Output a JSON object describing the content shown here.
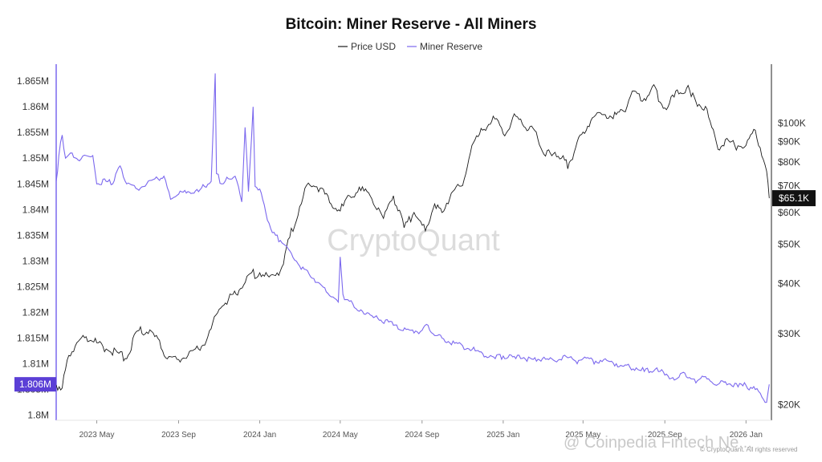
{
  "chart_data": {
    "type": "line",
    "title": "Bitcoin: Miner Reserve - All Miners",
    "legend": [
      "Price USD",
      "Miner Reserve"
    ],
    "legend_position": "top-center",
    "grid": false,
    "x_ticks": [
      "2023 May",
      "2023 Sep",
      "2024 Jan",
      "2024 May",
      "2024 Sep",
      "2025 Jan",
      "2025 May",
      "2025 Sep",
      "2026 Jan"
    ],
    "y_left": {
      "scale": "linear",
      "range": [
        1.799,
        1.8683
      ],
      "ticks": [
        1.8,
        1.805,
        1.81,
        1.815,
        1.82,
        1.825,
        1.83,
        1.835,
        1.84,
        1.845,
        1.85,
        1.855,
        1.86,
        1.865
      ],
      "tick_labels": [
        "1.8M",
        "1.805M",
        "1.81M",
        "1.815M",
        "1.82M",
        "1.825M",
        "1.83M",
        "1.835M",
        "1.84M",
        "1.845M",
        "1.85M",
        "1.855M",
        "1.86M",
        "1.865M"
      ],
      "current_value_label": "1.806M"
    },
    "y_right": {
      "scale": "log",
      "range": [
        18300,
        140000
      ],
      "ticks": [
        20000,
        30000,
        40000,
        50000,
        60000,
        70000,
        80000,
        90000,
        100000
      ],
      "tick_labels": [
        "$20K",
        "$30K",
        "$40K",
        "$50K",
        "$60K",
        "$70K",
        "$80K",
        "$90K",
        "$100K"
      ],
      "current_value_label": "$65.1K"
    },
    "series": [
      {
        "name": "Price USD",
        "axis": "right",
        "color": "#1a1a1a",
        "x": [
          "2023-03-01",
          "2023-03-10",
          "2023-03-20",
          "2023-04-01",
          "2023-04-15",
          "2023-05-01",
          "2023-05-15",
          "2023-06-01",
          "2023-06-15",
          "2023-07-01",
          "2023-07-15",
          "2023-08-01",
          "2023-08-15",
          "2023-09-01",
          "2023-09-15",
          "2023-10-01",
          "2023-10-15",
          "2023-11-01",
          "2023-11-15",
          "2023-12-01",
          "2023-12-15",
          "2024-01-01",
          "2024-01-15",
          "2024-02-01",
          "2024-02-15",
          "2024-03-01",
          "2024-03-14",
          "2024-04-01",
          "2024-04-15",
          "2024-05-01",
          "2024-05-15",
          "2024-06-01",
          "2024-06-15",
          "2024-07-05",
          "2024-07-20",
          "2024-08-05",
          "2024-08-20",
          "2024-09-06",
          "2024-09-20",
          "2024-10-01",
          "2024-10-15",
          "2024-11-01",
          "2024-11-15",
          "2024-12-01",
          "2024-12-17",
          "2025-01-01",
          "2025-01-20",
          "2025-02-01",
          "2025-02-15",
          "2025-03-01",
          "2025-03-15",
          "2025-04-01",
          "2025-04-08",
          "2025-04-20",
          "2025-05-01",
          "2025-05-15",
          "2025-06-01",
          "2025-06-20",
          "2025-07-01",
          "2025-07-14",
          "2025-08-01",
          "2025-08-13",
          "2025-09-01",
          "2025-09-15",
          "2025-10-06",
          "2025-10-20",
          "2025-11-01",
          "2025-11-20",
          "2025-12-01",
          "2025-12-15",
          "2026-01-01",
          "2026-01-15",
          "2026-02-01",
          "2026-02-05"
        ],
        "values": [
          22400,
          22000,
          26500,
          28500,
          29500,
          28500,
          27500,
          27000,
          26000,
          30500,
          30300,
          29200,
          26000,
          25900,
          26500,
          27500,
          29500,
          34500,
          36500,
          38500,
          42000,
          42500,
          41500,
          43000,
          52000,
          62000,
          71000,
          69000,
          63500,
          60500,
          66000,
          68000,
          66000,
          58000,
          66000,
          55000,
          60000,
          54000,
          63000,
          60000,
          67000,
          70000,
          88000,
          96000,
          104000,
          94000,
          104000,
          98000,
          97000,
          85000,
          83000,
          83000,
          77000,
          87000,
          95000,
          103000,
          105000,
          105000,
          107000,
          120000,
          115000,
          123000,
          109000,
          116000,
          124000,
          110000,
          110000,
          86000,
          91000,
          88000,
          88000,
          96000,
          76000,
          65100
        ]
      },
      {
        "name": "Miner Reserve",
        "axis": "left",
        "color": "#7b68ee",
        "x": [
          "2023-03-01",
          "2023-03-05",
          "2023-03-10",
          "2023-03-15",
          "2023-03-25",
          "2023-04-05",
          "2023-04-15",
          "2023-04-25",
          "2023-05-01",
          "2023-05-15",
          "2023-05-25",
          "2023-06-05",
          "2023-06-15",
          "2023-07-01",
          "2023-07-15",
          "2023-08-01",
          "2023-08-10",
          "2023-08-20",
          "2023-09-01",
          "2023-09-15",
          "2023-10-01",
          "2023-10-10",
          "2023-10-20",
          "2023-10-26",
          "2023-10-28",
          "2023-11-05",
          "2023-11-15",
          "2023-11-25",
          "2023-12-05",
          "2023-12-10",
          "2023-12-15",
          "2023-12-22",
          "2023-12-25",
          "2024-01-01",
          "2024-01-10",
          "2024-01-20",
          "2024-02-01",
          "2024-02-15",
          "2024-03-01",
          "2024-03-15",
          "2024-04-01",
          "2024-04-10",
          "2024-04-20",
          "2024-04-28",
          "2024-05-01",
          "2024-05-05",
          "2024-05-10",
          "2024-06-01",
          "2024-06-20",
          "2024-07-01",
          "2024-07-20",
          "2024-08-01",
          "2024-08-20",
          "2024-09-01",
          "2024-09-10",
          "2024-09-20",
          "2024-10-01",
          "2024-10-20",
          "2024-11-01",
          "2024-11-20",
          "2024-12-01",
          "2024-12-20",
          "2025-01-01",
          "2025-01-20",
          "2025-02-01",
          "2025-02-20",
          "2025-03-01",
          "2025-03-20",
          "2025-04-01",
          "2025-04-20",
          "2025-05-01",
          "2025-05-20",
          "2025-06-01",
          "2025-06-20",
          "2025-07-01",
          "2025-07-20",
          "2025-08-01",
          "2025-08-20",
          "2025-09-01",
          "2025-09-20",
          "2025-10-01",
          "2025-10-20",
          "2025-11-01",
          "2025-11-20",
          "2025-12-01",
          "2025-12-20",
          "2026-01-01",
          "2026-01-15",
          "2026-01-25",
          "2026-02-01",
          "2026-02-05"
        ],
        "values": [
          1.8455,
          1.8505,
          1.8545,
          1.85,
          1.851,
          1.8495,
          1.8505,
          1.8505,
          1.845,
          1.8455,
          1.845,
          1.8485,
          1.845,
          1.844,
          1.845,
          1.846,
          1.8465,
          1.842,
          1.843,
          1.8435,
          1.8435,
          1.8445,
          1.8455,
          1.8665,
          1.847,
          1.845,
          1.846,
          1.8465,
          1.8415,
          1.856,
          1.8435,
          1.86,
          1.8445,
          1.844,
          1.8395,
          1.8355,
          1.834,
          1.832,
          1.829,
          1.8275,
          1.8255,
          1.824,
          1.823,
          1.822,
          1.8308,
          1.8235,
          1.8225,
          1.8205,
          1.819,
          1.8185,
          1.8175,
          1.8165,
          1.816,
          1.8165,
          1.8175,
          1.8155,
          1.815,
          1.814,
          1.8135,
          1.8125,
          1.812,
          1.811,
          1.8115,
          1.811,
          1.8112,
          1.8105,
          1.811,
          1.8105,
          1.8115,
          1.8105,
          1.811,
          1.8105,
          1.8108,
          1.81,
          1.8095,
          1.8092,
          1.8085,
          1.8092,
          1.8078,
          1.8072,
          1.8082,
          1.8067,
          1.8075,
          1.806,
          1.8065,
          1.8055,
          1.8058,
          1.805,
          1.8035,
          1.8025,
          1.806
        ]
      }
    ],
    "watermark": "CryptoQuant",
    "copyright": "© CryptoQuant. All rights reserved",
    "overlay_watermark": "@ Coinpedia Fintech Ne...",
    "colors": {
      "price": "#1a1a1a",
      "reserve": "#7b68ee",
      "badge": "#5b3fd6",
      "price_badge": "#111111"
    }
  }
}
